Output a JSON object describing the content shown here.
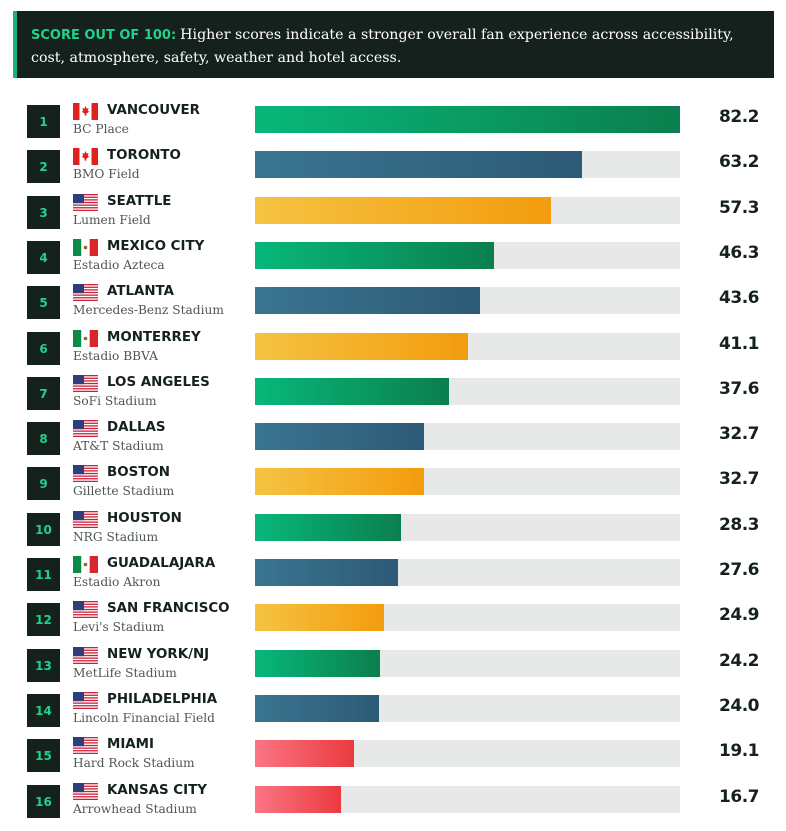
{
  "header": {
    "label": "SCORE OUT OF 100:",
    "text": "Higher scores indicate a stronger overall fan experience across accessibility, cost, atmosphere, safety, weather and hotel access."
  },
  "colors": {
    "green": [
      "#08b77a",
      "#0b7f4e"
    ],
    "blue": [
      "#3a7590",
      "#2d5a76"
    ],
    "orange": [
      "#f5c342",
      "#f39c0e"
    ],
    "red": [
      "#fb7585",
      "#ea3b3e"
    ],
    "track": "#e7e9e8",
    "dark": "#14211c",
    "accent": "#22d28a"
  },
  "chart_data": {
    "type": "bar",
    "orientation": "horizontal",
    "xlim": [
      0,
      82.2
    ],
    "rows": [
      {
        "rank": "1",
        "city": "VANCOUVER",
        "stadium": "BC Place",
        "country": "canada",
        "value": 82.2,
        "score": "82.2",
        "color": "green"
      },
      {
        "rank": "2",
        "city": "TORONTO",
        "stadium": "BMO Field",
        "country": "canada",
        "value": 63.2,
        "score": "63.2",
        "color": "blue"
      },
      {
        "rank": "3",
        "city": "SEATTLE",
        "stadium": "Lumen Field",
        "country": "usa",
        "value": 57.3,
        "score": "57.3",
        "color": "orange"
      },
      {
        "rank": "4",
        "city": "MEXICO CITY",
        "stadium": "Estadio Azteca",
        "country": "mexico",
        "value": 46.3,
        "score": "46.3",
        "color": "green"
      },
      {
        "rank": "5",
        "city": "ATLANTA",
        "stadium": "Mercedes-Benz Stadium",
        "country": "usa",
        "value": 43.6,
        "score": "43.6",
        "color": "blue"
      },
      {
        "rank": "6",
        "city": "MONTERREY",
        "stadium": "Estadio BBVA",
        "country": "mexico",
        "value": 41.1,
        "score": "41.1",
        "color": "orange"
      },
      {
        "rank": "7",
        "city": "LOS ANGELES",
        "stadium": "SoFi Stadium",
        "country": "usa",
        "value": 37.6,
        "score": "37.6",
        "color": "green"
      },
      {
        "rank": "8",
        "city": "DALLAS",
        "stadium": "AT&T Stadium",
        "country": "usa",
        "value": 32.7,
        "score": "32.7",
        "color": "blue"
      },
      {
        "rank": "9",
        "city": "BOSTON",
        "stadium": "Gillette Stadium",
        "country": "usa",
        "value": 32.7,
        "score": "32.7",
        "color": "orange"
      },
      {
        "rank": "10",
        "city": "HOUSTON",
        "stadium": "NRG Stadium",
        "country": "usa",
        "value": 28.3,
        "score": "28.3",
        "color": "green"
      },
      {
        "rank": "11",
        "city": "GUADALAJARA",
        "stadium": "Estadio Akron",
        "country": "mexico",
        "value": 27.6,
        "score": "27.6",
        "color": "blue"
      },
      {
        "rank": "12",
        "city": "SAN FRANCISCO",
        "stadium": "Levi's Stadium",
        "country": "usa",
        "value": 24.9,
        "score": "24.9",
        "color": "orange"
      },
      {
        "rank": "13",
        "city": "NEW YORK/NJ",
        "stadium": "MetLife Stadium",
        "country": "usa",
        "value": 24.2,
        "score": "24.2",
        "color": "green"
      },
      {
        "rank": "14",
        "city": "PHILADELPHIA",
        "stadium": "Lincoln Financial Field",
        "country": "usa",
        "value": 24.0,
        "score": "24.0",
        "color": "blue"
      },
      {
        "rank": "15",
        "city": "MIAMI",
        "stadium": "Hard Rock Stadium",
        "country": "usa",
        "value": 19.1,
        "score": "19.1",
        "color": "red"
      },
      {
        "rank": "16",
        "city": "KANSAS CITY",
        "stadium": "Arrowhead Stadium",
        "country": "usa",
        "value": 16.7,
        "score": "16.7",
        "color": "red"
      }
    ]
  }
}
